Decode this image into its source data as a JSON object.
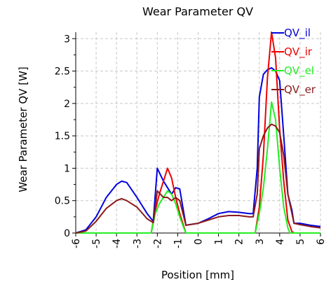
{
  "chart_data": {
    "type": "line",
    "title": "Wear Parameter QV",
    "xlabel": "Position [mm]",
    "ylabel": "Wear Parameter QV [W]",
    "xlim": [
      -6,
      6
    ],
    "ylim": [
      0,
      3.1
    ],
    "xticks": [
      "-6",
      "-5",
      "-4",
      "-3",
      "-2",
      "-1",
      "0",
      "1",
      "2",
      "3",
      "4",
      "5",
      "6"
    ],
    "yticks": [
      "0",
      "0.5",
      "1",
      "1.5",
      "2",
      "2.5",
      "3"
    ],
    "grid": true,
    "legend_position": "top-right",
    "series": [
      {
        "name": "QV_il",
        "color": "#0000dd",
        "x": [
          -6,
          -5.5,
          -5,
          -4.5,
          -4,
          -3.75,
          -3.5,
          -3,
          -2.5,
          -2.2,
          -2,
          -1.7,
          -1.5,
          -1.3,
          -1.1,
          -0.9,
          -0.6,
          0,
          0.5,
          1,
          1.5,
          2,
          2.5,
          2.7,
          2.9,
          3.0,
          3.2,
          3.4,
          3.6,
          3.8,
          4.0,
          4.2,
          4.4,
          4.6,
          4.7,
          5,
          5.5,
          6
        ],
        "y": [
          0,
          0.05,
          0.25,
          0.55,
          0.75,
          0.8,
          0.78,
          0.55,
          0.3,
          0.18,
          1.0,
          0.8,
          0.7,
          0.6,
          0.7,
          0.68,
          0.12,
          0.15,
          0.22,
          0.3,
          0.33,
          0.32,
          0.3,
          0.3,
          1.0,
          2.1,
          2.45,
          2.52,
          2.55,
          2.5,
          2.35,
          1.5,
          0.6,
          0.35,
          0.15,
          0.15,
          0.12,
          0.1
        ]
      },
      {
        "name": "QV_ir",
        "color": "#ee0000",
        "x": [
          -6,
          -2.3,
          -2.1,
          -1.9,
          -1.7,
          -1.5,
          -1.3,
          -1.1,
          -0.9,
          -0.7,
          -0.6,
          -0.2,
          2.5,
          2.8,
          3.0,
          3.2,
          3.4,
          3.6,
          3.8,
          4.0,
          4.2,
          4.4,
          4.6,
          4.7,
          6
        ],
        "y": [
          0,
          0,
          0.35,
          0.6,
          0.8,
          1.0,
          0.85,
          0.55,
          0.3,
          0.1,
          0,
          0,
          0,
          0,
          0.4,
          1.2,
          2.4,
          3.1,
          2.7,
          1.6,
          0.8,
          0.2,
          0.02,
          0,
          0
        ]
      },
      {
        "name": "QV_el",
        "color": "#22ee22",
        "x": [
          -6,
          -2.3,
          -2.1,
          -1.9,
          -1.7,
          -1.5,
          -1.3,
          -1.1,
          -0.9,
          -0.7,
          -0.6,
          0,
          2.5,
          2.8,
          3.0,
          3.2,
          3.4,
          3.6,
          3.8,
          4.0,
          4.2,
          4.4,
          4.5,
          6
        ],
        "y": [
          0,
          0,
          0.3,
          0.45,
          0.55,
          0.65,
          0.6,
          0.45,
          0.25,
          0.08,
          0,
          0,
          0,
          0,
          0.3,
          0.7,
          1.3,
          2.02,
          1.75,
          1.0,
          0.4,
          0.08,
          0,
          0
        ]
      },
      {
        "name": "QV_er",
        "color": "#8b1a1a",
        "x": [
          -6,
          -5.5,
          -5,
          -4.5,
          -4,
          -3.75,
          -3.5,
          -3,
          -2.5,
          -2.2,
          -2,
          -1.7,
          -1.5,
          -1.3,
          -1.1,
          -0.9,
          -0.6,
          0,
          0.5,
          1,
          1.5,
          2,
          2.5,
          2.7,
          2.9,
          3.0,
          3.2,
          3.4,
          3.6,
          3.8,
          4.0,
          4.2,
          4.4,
          4.6,
          4.7,
          5,
          5.5,
          6
        ],
        "y": [
          0,
          0.03,
          0.18,
          0.38,
          0.5,
          0.53,
          0.5,
          0.4,
          0.22,
          0.16,
          0.65,
          0.55,
          0.55,
          0.5,
          0.55,
          0.5,
          0.12,
          0.15,
          0.2,
          0.25,
          0.27,
          0.27,
          0.25,
          0.25,
          0.6,
          1.3,
          1.5,
          1.62,
          1.68,
          1.65,
          1.55,
          1.2,
          0.6,
          0.3,
          0.15,
          0.13,
          0.1,
          0.08
        ]
      }
    ]
  }
}
